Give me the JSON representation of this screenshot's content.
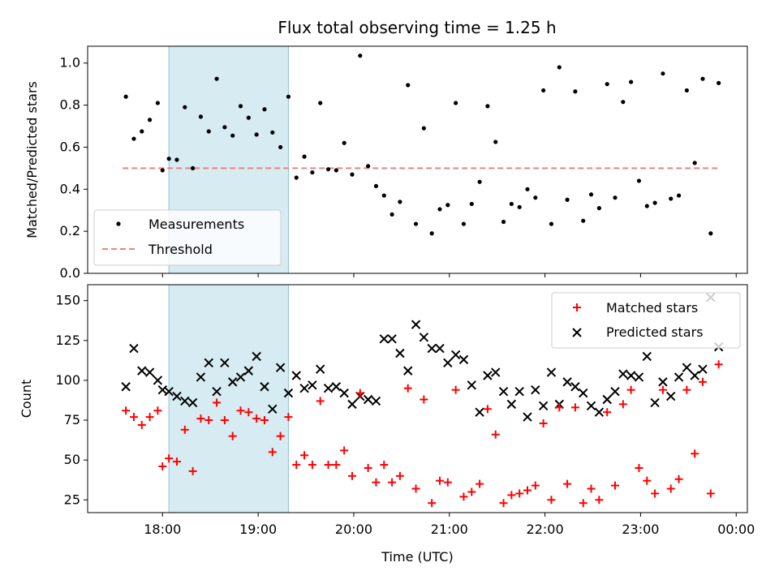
{
  "chart_data": [
    {
      "type": "scatter",
      "title": "Flux total observing time = 1.25 h",
      "xlabel": "",
      "ylabel": "Matched/Predicted stars",
      "ylim": [
        0,
        1.08
      ],
      "yticks": [
        0.0,
        0.2,
        0.4,
        0.6,
        0.8,
        1.0
      ],
      "ytick_labels": [
        "0.0",
        "0.2",
        "0.4",
        "0.6",
        "0.8",
        "1.0"
      ],
      "legend_position": "lower-left",
      "shaded_span": {
        "start": "18:04",
        "end": "19:19",
        "color": "#add8e6"
      },
      "threshold": {
        "name": "Threshold",
        "value": 0.5,
        "from": "17:35",
        "to": "23:50",
        "color": "#f08080"
      },
      "series": [
        {
          "name": "Measurements",
          "color": "#000000",
          "x": [
            "17:37",
            "17:42",
            "17:47",
            "17:52",
            "17:57",
            "18:00",
            "18:04",
            "18:09",
            "18:14",
            "18:19",
            "18:24",
            "18:29",
            "18:34",
            "18:39",
            "18:44",
            "18:49",
            "18:54",
            "18:59",
            "19:04",
            "19:09",
            "19:14",
            "19:19",
            "19:24",
            "19:29",
            "19:34",
            "19:39",
            "19:44",
            "19:49",
            "19:54",
            "19:59",
            "20:04",
            "20:09",
            "20:14",
            "20:19",
            "20:24",
            "20:29",
            "20:34",
            "20:39",
            "20:44",
            "20:49",
            "20:54",
            "20:59",
            "21:04",
            "21:09",
            "21:14",
            "21:19",
            "21:24",
            "21:29",
            "21:34",
            "21:39",
            "21:44",
            "21:49",
            "21:54",
            "21:59",
            "22:04",
            "22:09",
            "22:14",
            "22:19",
            "22:24",
            "22:29",
            "22:34",
            "22:39",
            "22:44",
            "22:49",
            "22:54",
            "22:59",
            "23:04",
            "23:09",
            "23:14",
            "23:19",
            "23:24",
            "23:29",
            "23:34",
            "23:39",
            "23:44",
            "23:49"
          ],
          "y": [
            0.84,
            0.64,
            0.675,
            0.73,
            0.81,
            0.49,
            0.545,
            0.54,
            0.79,
            0.5,
            0.745,
            0.675,
            0.925,
            0.695,
            0.655,
            0.795,
            0.74,
            0.66,
            0.78,
            0.67,
            0.6,
            0.84,
            0.455,
            0.555,
            0.48,
            0.81,
            0.495,
            0.49,
            0.62,
            0.47,
            1.035,
            0.51,
            0.415,
            0.37,
            0.28,
            0.34,
            0.895,
            0.235,
            0.69,
            0.19,
            0.305,
            0.325,
            0.81,
            0.235,
            0.33,
            0.435,
            0.795,
            0.625,
            0.245,
            0.33,
            0.315,
            0.4,
            0.36,
            0.87,
            0.235,
            0.98,
            0.35,
            0.865,
            0.25,
            0.375,
            0.31,
            0.9,
            0.36,
            0.815,
            0.91,
            0.44,
            0.32,
            0.335,
            0.95,
            0.355,
            0.37,
            0.87,
            0.525,
            0.925,
            0.19,
            0.905
          ]
        }
      ]
    },
    {
      "type": "scatter",
      "title": "",
      "xlabel": "Time (UTC)",
      "ylabel": "Count",
      "ylim": [
        17,
        160
      ],
      "yticks": [
        25,
        50,
        75,
        100,
        125,
        150
      ],
      "ytick_labels": [
        "25",
        "50",
        "75",
        "100",
        "125",
        "150"
      ],
      "xlim": [
        "17:13",
        "00:07"
      ],
      "xticks": [
        "18:00",
        "19:00",
        "20:00",
        "21:00",
        "22:00",
        "23:00",
        "00:00"
      ],
      "xtick_labels": [
        "18:00",
        "19:00",
        "20:00",
        "21:00",
        "22:00",
        "23:00",
        "00:00"
      ],
      "legend_position": "top-right",
      "shaded_span": {
        "start": "18:04",
        "end": "19:19",
        "color": "#add8e6"
      },
      "series": [
        {
          "name": "Matched stars",
          "marker": "plus",
          "color": "#ff0000",
          "x": [
            "17:37",
            "17:42",
            "17:47",
            "17:52",
            "17:57",
            "18:00",
            "18:04",
            "18:09",
            "18:14",
            "18:19",
            "18:24",
            "18:29",
            "18:34",
            "18:39",
            "18:44",
            "18:49",
            "18:54",
            "18:59",
            "19:04",
            "19:09",
            "19:14",
            "19:19",
            "19:24",
            "19:29",
            "19:34",
            "19:39",
            "19:44",
            "19:49",
            "19:54",
            "19:59",
            "20:04",
            "20:09",
            "20:14",
            "20:19",
            "20:24",
            "20:29",
            "20:34",
            "20:39",
            "20:44",
            "20:49",
            "20:54",
            "20:59",
            "21:04",
            "21:09",
            "21:14",
            "21:19",
            "21:24",
            "21:29",
            "21:34",
            "21:39",
            "21:44",
            "21:49",
            "21:54",
            "21:59",
            "22:04",
            "22:09",
            "22:14",
            "22:19",
            "22:24",
            "22:29",
            "22:34",
            "22:39",
            "22:44",
            "22:49",
            "22:54",
            "22:59",
            "23:04",
            "23:09",
            "23:14",
            "23:19",
            "23:24",
            "23:29",
            "23:34",
            "23:39",
            "23:44",
            "23:49"
          ],
          "y": [
            81,
            77,
            72,
            77,
            81,
            46,
            51,
            49,
            69,
            43,
            76,
            75,
            86,
            75,
            65,
            81,
            80,
            76,
            75,
            55,
            65,
            77,
            47,
            53,
            47,
            87,
            47,
            47,
            56,
            40,
            92,
            45,
            36,
            47,
            36,
            40,
            95,
            32,
            88,
            23,
            37,
            36,
            94,
            27,
            30,
            35,
            82,
            66,
            23,
            28,
            29,
            31,
            34,
            73,
            25,
            83,
            35,
            83,
            23,
            32,
            25,
            80,
            34,
            85,
            94,
            45,
            37,
            29,
            94,
            32,
            38,
            94,
            54,
            99,
            29,
            110
          ]
        },
        {
          "name": "Predicted stars",
          "marker": "x",
          "color": "#000000",
          "x": [
            "17:37",
            "17:42",
            "17:47",
            "17:52",
            "17:57",
            "18:00",
            "18:04",
            "18:09",
            "18:14",
            "18:19",
            "18:24",
            "18:29",
            "18:34",
            "18:39",
            "18:44",
            "18:49",
            "18:54",
            "18:59",
            "19:04",
            "19:09",
            "19:14",
            "19:19",
            "19:24",
            "19:29",
            "19:34",
            "19:39",
            "19:44",
            "19:49",
            "19:54",
            "19:59",
            "20:04",
            "20:09",
            "20:14",
            "20:19",
            "20:24",
            "20:29",
            "20:34",
            "20:39",
            "20:44",
            "20:49",
            "20:54",
            "20:59",
            "21:04",
            "21:09",
            "21:14",
            "21:19",
            "21:24",
            "21:29",
            "21:34",
            "21:39",
            "21:44",
            "21:49",
            "21:54",
            "21:59",
            "22:04",
            "22:09",
            "22:14",
            "22:19",
            "22:24",
            "22:29",
            "22:34",
            "22:39",
            "22:44",
            "22:49",
            "22:54",
            "22:59",
            "23:04",
            "23:09",
            "23:14",
            "23:19",
            "23:24",
            "23:29",
            "23:34",
            "23:39",
            "23:44",
            "23:49"
          ],
          "y": [
            96,
            120,
            106,
            105,
            100,
            94,
            93,
            90,
            87,
            86,
            102,
            111,
            93,
            111,
            99,
            102,
            106,
            115,
            96,
            82,
            108,
            92,
            103,
            95,
            97,
            107,
            95,
            96,
            92,
            85,
            90,
            88,
            87,
            126,
            126,
            117,
            106,
            135,
            127,
            120,
            120,
            111,
            116,
            113,
            97,
            80,
            103,
            105,
            93,
            85,
            93,
            77,
            94,
            84,
            105,
            85,
            99,
            96,
            92,
            84,
            80,
            88,
            93,
            104,
            103,
            102,
            115,
            86,
            99,
            90,
            102,
            108,
            103,
            107,
            152,
            121
          ]
        }
      ]
    }
  ]
}
